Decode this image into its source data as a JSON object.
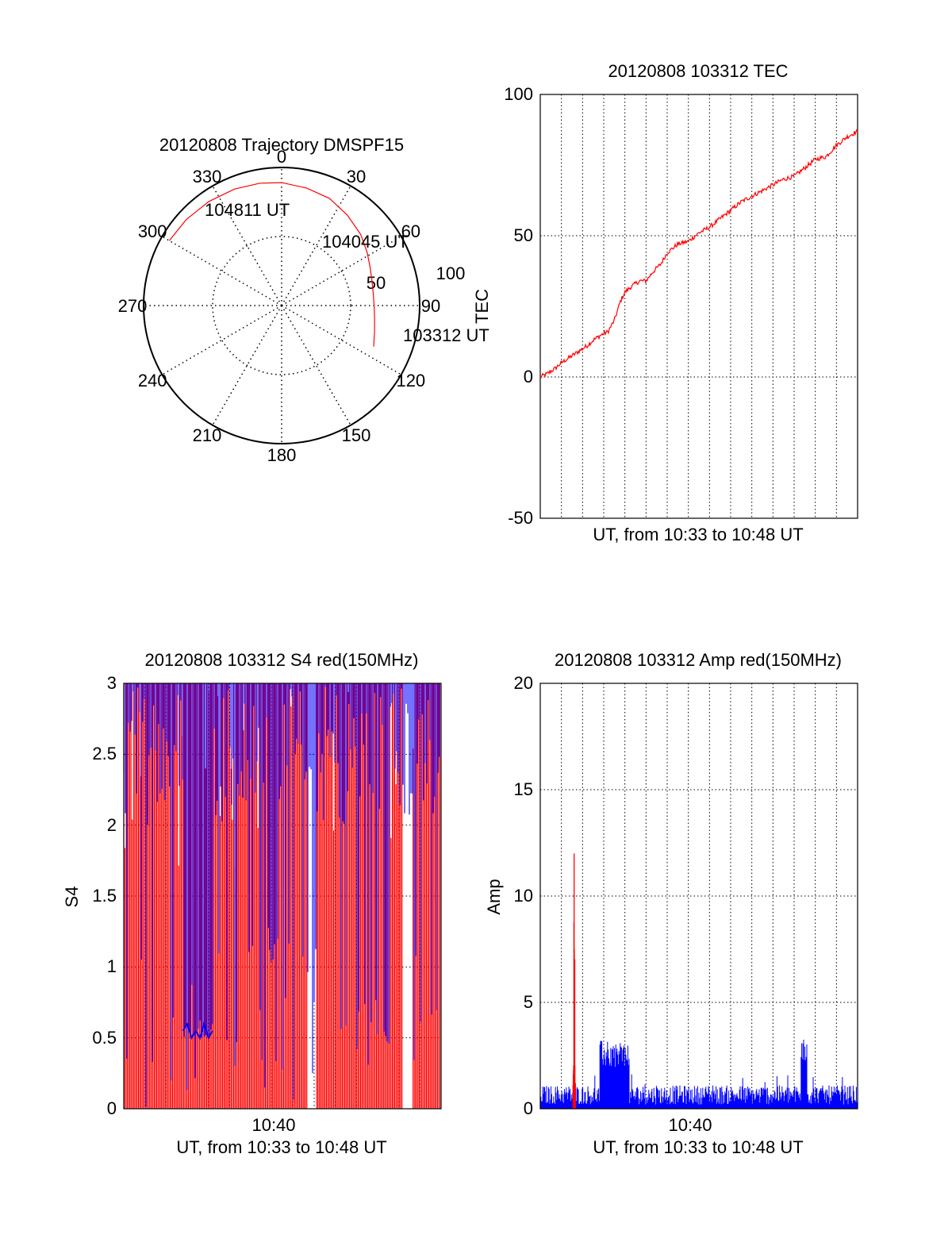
{
  "colors": {
    "red": "#ff0000",
    "blue": "#0000ff",
    "axis": "#000000",
    "grid": "#000000"
  },
  "chart_data": [
    {
      "id": "trajectory",
      "type": "scatter",
      "subtype": "polar",
      "title": "20120808 Trajectory DMSPF15",
      "angle_ticks": [
        "0",
        "30",
        "60",
        "90",
        "120",
        "150",
        "180",
        "210",
        "240",
        "270",
        "300",
        "330"
      ],
      "radial_ticks": [
        "50",
        "100"
      ],
      "rlim": [
        0,
        100
      ],
      "grid": true,
      "track": {
        "azimuth": [
          300,
          312,
          325,
          338,
          350,
          0,
          12,
          24,
          36,
          48,
          58,
          66,
          74,
          82,
          90,
          98,
          106,
          114
        ],
        "distance": [
          94,
          93,
          92,
          91,
          90,
          89,
          87,
          85,
          81,
          77,
          73,
          70,
          68,
          67,
          67,
          68,
          70,
          73
        ]
      },
      "annotations": [
        {
          "text": "104811 UT",
          "azimuth": 312,
          "distance": 93
        },
        {
          "text": "104045 UT",
          "azimuth": 58,
          "distance": 73
        },
        {
          "text": "103312 UT",
          "azimuth": 114,
          "distance": 73
        }
      ]
    },
    {
      "id": "tec",
      "type": "line",
      "title": "20120808 103312 TEC",
      "xlabel": "UT, from 10:33 to 10:48 UT",
      "ylabel": "TEC",
      "xlim": [
        0,
        15
      ],
      "ylim": [
        -50,
        100
      ],
      "yticks": [
        "-50",
        "0",
        "50",
        "100"
      ],
      "grid": true,
      "series": [
        {
          "color": "#ff0000",
          "x": [
            0,
            0.3,
            0.7,
            1.0,
            1.4,
            1.8,
            2.2,
            2.5,
            2.9,
            3.2,
            3.5,
            3.8,
            4.0,
            4.3,
            4.7,
            5.0,
            5.3,
            5.7,
            6.0,
            6.5,
            7.0,
            7.5,
            8.0,
            8.5,
            9.0,
            9.5,
            10.0,
            10.5,
            11.0,
            11.5,
            12.0,
            12.5,
            13.0,
            13.5,
            14.0,
            14.5,
            15.0
          ],
          "y": [
            0,
            1,
            3,
            5,
            7,
            9,
            11,
            13,
            15,
            16,
            20,
            27,
            30,
            32,
            34,
            34,
            37,
            40,
            44,
            47,
            48,
            51,
            53,
            56,
            59,
            62,
            64,
            66,
            68,
            70,
            71,
            74,
            77,
            78,
            82,
            85,
            87
          ]
        }
      ]
    },
    {
      "id": "s4",
      "type": "line",
      "title": "20120808 103312 S4 red(150MHz)",
      "xlabel": "UT, from 10:33 to 10:48 UT",
      "ylabel": "S4",
      "xlim": [
        0,
        15
      ],
      "ylim": [
        0,
        3
      ],
      "yticks": [
        "0",
        "0.5",
        "1",
        "1.5",
        "2",
        "2.5",
        "3"
      ],
      "xticks": [
        {
          "value": 7.1,
          "label": "10:40"
        }
      ],
      "grid": true,
      "series": [
        {
          "color": "#ff0000",
          "description_values": "saturated noisy S4 values between 0 and 3"
        },
        {
          "color": "#0000ff",
          "x": [
            2.8,
            3.0,
            3.2,
            3.4,
            3.6,
            3.8,
            4.0,
            4.2
          ],
          "y": [
            0.55,
            0.6,
            0.5,
            0.55,
            0.5,
            0.6,
            0.5,
            0.55
          ]
        }
      ]
    },
    {
      "id": "amp",
      "type": "line",
      "title": "20120808 103312 Amp red(150MHz)",
      "xlabel": "UT, from 10:33 to 10:48 UT",
      "ylabel": "Amp",
      "xlim": [
        0,
        15
      ],
      "ylim": [
        0,
        20
      ],
      "yticks": [
        "0",
        "5",
        "10",
        "15",
        "20"
      ],
      "xticks": [
        {
          "value": 7.1,
          "label": "10:40"
        }
      ],
      "grid": true,
      "series": [
        {
          "color": "#ff0000",
          "peak_x": 1.6,
          "peak_y": 12
        },
        {
          "color": "#0000ff",
          "bursts": [
            {
              "x_start": 2.8,
              "x_end": 4.2,
              "level": 3.2
            },
            {
              "x_start": 12.3,
              "x_end": 12.6,
              "level": 3.6
            }
          ],
          "baseline": 0.8
        }
      ]
    }
  ]
}
